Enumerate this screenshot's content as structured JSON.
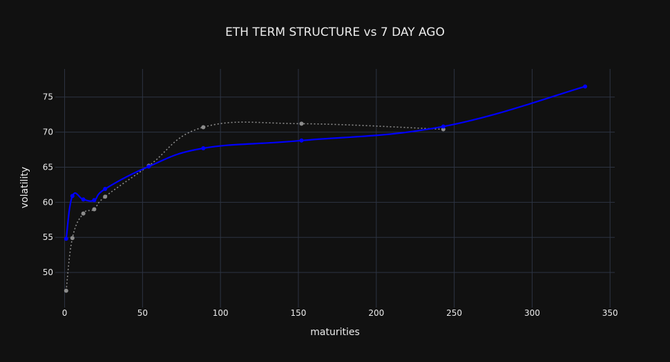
{
  "chart_data": {
    "type": "line",
    "title": "ETH TERM STRUCTURE vs 7 DAY AGO",
    "xlabel": "maturities",
    "ylabel": "volatility",
    "xlim": [
      -6,
      353
    ],
    "ylim": [
      45,
      79
    ],
    "x_ticks": [
      0,
      50,
      100,
      150,
      200,
      250,
      300,
      350
    ],
    "y_ticks": [
      50,
      55,
      60,
      65,
      70,
      75
    ],
    "grid": true,
    "legend": "none",
    "series": [
      {
        "style": "dotted-gray",
        "color": "#8c8c8c",
        "x": [
          1,
          5,
          12,
          19,
          26,
          54,
          89,
          152,
          243
        ],
        "y": [
          47.4,
          54.9,
          58.4,
          59.0,
          60.8,
          65.2,
          70.7,
          71.2,
          70.4
        ]
      },
      {
        "style": "solid-blue",
        "color": "#0000ff",
        "x": [
          1,
          5,
          12,
          19,
          26,
          54,
          89,
          152,
          243,
          334
        ],
        "y": [
          54.8,
          60.9,
          60.4,
          60.3,
          61.9,
          65.1,
          67.7,
          68.8,
          70.8,
          76.5
        ]
      }
    ]
  }
}
